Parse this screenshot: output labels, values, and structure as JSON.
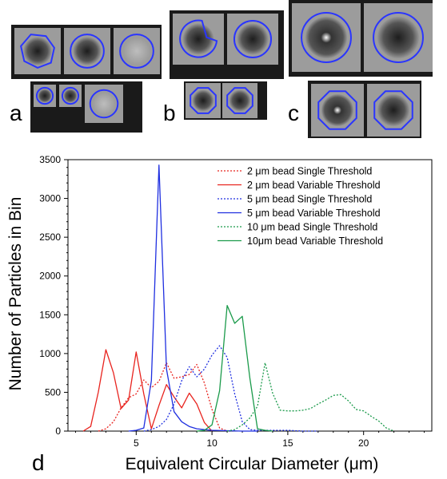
{
  "panel_labels": {
    "a": "a",
    "b": "b",
    "c": "c",
    "d": "d"
  },
  "micrographs": {
    "a_large": [
      "cell-irregular",
      "cell-round",
      "cell-faint"
    ],
    "a_small": [
      "cell-small",
      "cell-small",
      "cell-faint"
    ],
    "b_large": [
      "cell-notched",
      "cell-round"
    ],
    "b_small": [
      "cell-octagon",
      "cell-octagon"
    ],
    "c_large": [
      "cell-bright-round",
      "cell-dark-round"
    ],
    "c_small": [
      "cell-bright-octagon",
      "cell-dark-octagon"
    ]
  },
  "colors": {
    "red": "#e8241f",
    "blue": "#1f2fe0",
    "green": "#1a9a4a",
    "outline": "#2a35ff"
  },
  "chart_data": {
    "type": "line",
    "xlabel": "Equivalent Circular Diameter (μm)",
    "ylabel": "Number of Particles in Bin",
    "xlim": [
      0.5,
      24.5
    ],
    "ylim": [
      0,
      3500
    ],
    "xticks": [
      5,
      10,
      15,
      20
    ],
    "yticks": [
      0,
      500,
      1000,
      1500,
      2000,
      2500,
      3000,
      3500
    ],
    "legend_position": "top-right",
    "series": [
      {
        "name": "2 μm bead Single Threshold",
        "color": "#e8241f",
        "style": "dotted",
        "x": [
          2.5,
          3.0,
          3.5,
          4.0,
          4.5,
          5.0,
          5.5,
          6.0,
          6.5,
          7.0,
          7.5,
          8.0,
          8.5,
          9.0,
          9.5,
          10.0,
          10.5,
          11.0
        ],
        "y": [
          0,
          30,
          120,
          300,
          430,
          480,
          660,
          560,
          640,
          880,
          680,
          700,
          730,
          860,
          620,
          280,
          40,
          0
        ]
      },
      {
        "name": "2 μm bead Variable Threshold",
        "color": "#e8241f",
        "style": "solid",
        "x": [
          1.5,
          2.0,
          2.5,
          3.0,
          3.5,
          4.0,
          4.5,
          5.0,
          5.5,
          6.0,
          6.5,
          7.0,
          7.5,
          8.0,
          8.5,
          9.0,
          9.5,
          10.0
        ],
        "y": [
          0,
          60,
          500,
          1050,
          750,
          290,
          400,
          1020,
          480,
          30,
          330,
          600,
          440,
          300,
          490,
          350,
          110,
          0
        ]
      },
      {
        "name": "5 μm bead Single Threshold",
        "color": "#1f2fe0",
        "style": "dotted",
        "x": [
          5.5,
          6.0,
          6.5,
          7.0,
          7.5,
          8.0,
          8.5,
          9.0,
          9.5,
          10.0,
          10.5,
          11.0,
          11.5,
          12.0,
          12.5,
          13.0,
          14.0,
          15.0,
          16.0,
          17.0
        ],
        "y": [
          0,
          20,
          60,
          150,
          350,
          650,
          830,
          700,
          800,
          980,
          1100,
          950,
          480,
          120,
          20,
          10,
          10,
          10,
          0,
          0
        ]
      },
      {
        "name": "5 μm bead Variable Threshold",
        "color": "#1f2fe0",
        "style": "solid",
        "x": [
          4.5,
          5.0,
          5.5,
          6.0,
          6.5,
          7.0,
          7.5,
          8.0,
          8.5,
          9.0,
          9.5,
          10.0,
          11.0,
          12.0,
          13.0
        ],
        "y": [
          0,
          10,
          40,
          650,
          3430,
          800,
          250,
          120,
          60,
          30,
          20,
          10,
          5,
          0,
          0
        ]
      },
      {
        "name": "10 μm bead Single Threshold",
        "color": "#1a9a4a",
        "style": "dotted",
        "x": [
          11.0,
          11.5,
          12.0,
          12.5,
          13.0,
          13.5,
          14.0,
          14.5,
          15.0,
          15.5,
          16.0,
          16.5,
          17.0,
          17.5,
          18.0,
          18.5,
          19.0,
          19.5,
          20.0,
          20.5,
          21.0,
          21.5,
          22.0
        ],
        "y": [
          0,
          20,
          80,
          170,
          320,
          880,
          490,
          270,
          260,
          260,
          270,
          290,
          350,
          400,
          460,
          470,
          390,
          280,
          260,
          190,
          130,
          40,
          0
        ]
      },
      {
        "name": "10μm bead Variable Threshold",
        "color": "#1a9a4a",
        "style": "solid",
        "x": [
          9.0,
          9.5,
          10.0,
          10.5,
          11.0,
          11.5,
          12.0,
          12.5,
          13.0,
          13.5,
          14.0
        ],
        "y": [
          0,
          10,
          80,
          520,
          1620,
          1390,
          1480,
          680,
          30,
          10,
          0
        ]
      }
    ]
  }
}
